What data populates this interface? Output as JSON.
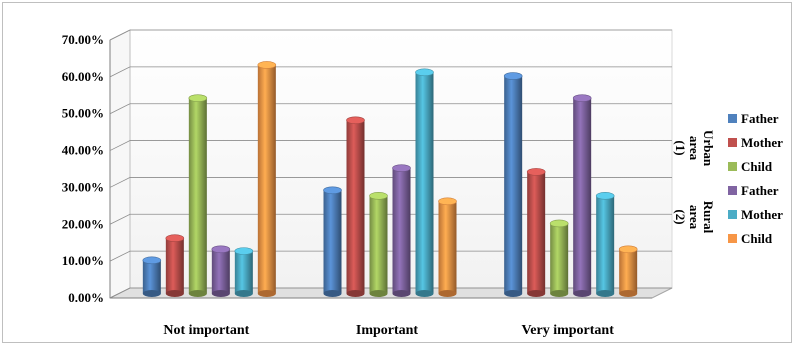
{
  "chart_data": {
    "type": "bar",
    "title": "",
    "xlabel": "",
    "ylabel": "",
    "categories": [
      "Not important",
      "Important",
      "Very important"
    ],
    "ylim": [
      0,
      70
    ],
    "y_ticks": [
      "0.00%",
      "10.00%",
      "20.00%",
      "30.00%",
      "40.00%",
      "50.00%",
      "60.00%",
      "70.00%"
    ],
    "grid": true,
    "legend_position": "right",
    "legend_groups": [
      {
        "line1": "Urban",
        "line2": "area",
        "line3": "(1)"
      },
      {
        "line1": "Rural",
        "line2": "area",
        "line3": "(2)"
      }
    ],
    "series": [
      {
        "name": "Father",
        "group": 0,
        "color": "#4f81bd",
        "values": [
          9,
          28,
          59
        ]
      },
      {
        "name": "Mother",
        "group": 0,
        "color": "#c0504d",
        "values": [
          15,
          47,
          33
        ]
      },
      {
        "name": "Child",
        "group": 0,
        "color": "#9bbb59",
        "values": [
          53,
          26.5,
          19
        ]
      },
      {
        "name": "Father",
        "group": 1,
        "color": "#8064a2",
        "values": [
          12,
          34,
          53
        ]
      },
      {
        "name": "Mother",
        "group": 1,
        "color": "#4bacc6",
        "values": [
          11.5,
          60,
          26.5
        ]
      },
      {
        "name": "Child",
        "group": 1,
        "color": "#f79646",
        "values": [
          62,
          25,
          12
        ]
      }
    ]
  }
}
